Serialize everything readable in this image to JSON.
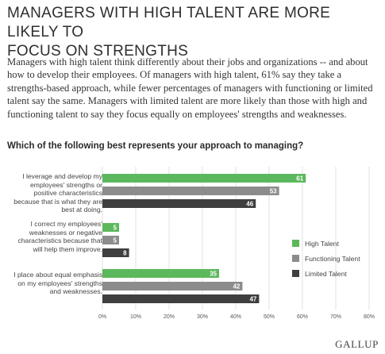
{
  "title_line1": "MANAGERS WITH HIGH TALENT ARE MORE LIKELY TO",
  "title_line2": "FOCUS ON STRENGTHS",
  "intro": "Managers with high talent think differently about their jobs and organizations -- and about how to develop their employees. Of managers with high talent, 61% say they take a strengths-based approach, while fewer percentages of managers with functioning or limited talent say the same. Managers with limited talent are more likely than those with high and functioning talent to say they focus equally on employees' strengths and weaknesses.",
  "question": "Which of the following best represents your approach to managing?",
  "brand": "GALLUP",
  "chart_data": {
    "type": "bar",
    "orientation": "horizontal",
    "categories": [
      "I leverage and develop my employees' strengths or positive characteristics because that is what they are best at doing.",
      "I correct my employees' weaknesses or negative characteristics because that will help them improve.",
      "I place about equal emphasis on my employees' strengths and weaknesses."
    ],
    "series": [
      {
        "name": "High Talent",
        "color": "#5cb85c",
        "values": [
          61,
          5,
          35
        ]
      },
      {
        "name": "Functioning Talent",
        "color": "#8c8c8c",
        "values": [
          53,
          5,
          42
        ]
      },
      {
        "name": "Limited Talent",
        "color": "#3f3f3f",
        "values": [
          46,
          8,
          47
        ]
      }
    ],
    "xlim": [
      0,
      80
    ],
    "xticks": [
      "0%",
      "10%",
      "20%",
      "30%",
      "40%",
      "50%",
      "60%",
      "70%",
      "80%"
    ],
    "grid": true,
    "legend_position": "right"
  }
}
